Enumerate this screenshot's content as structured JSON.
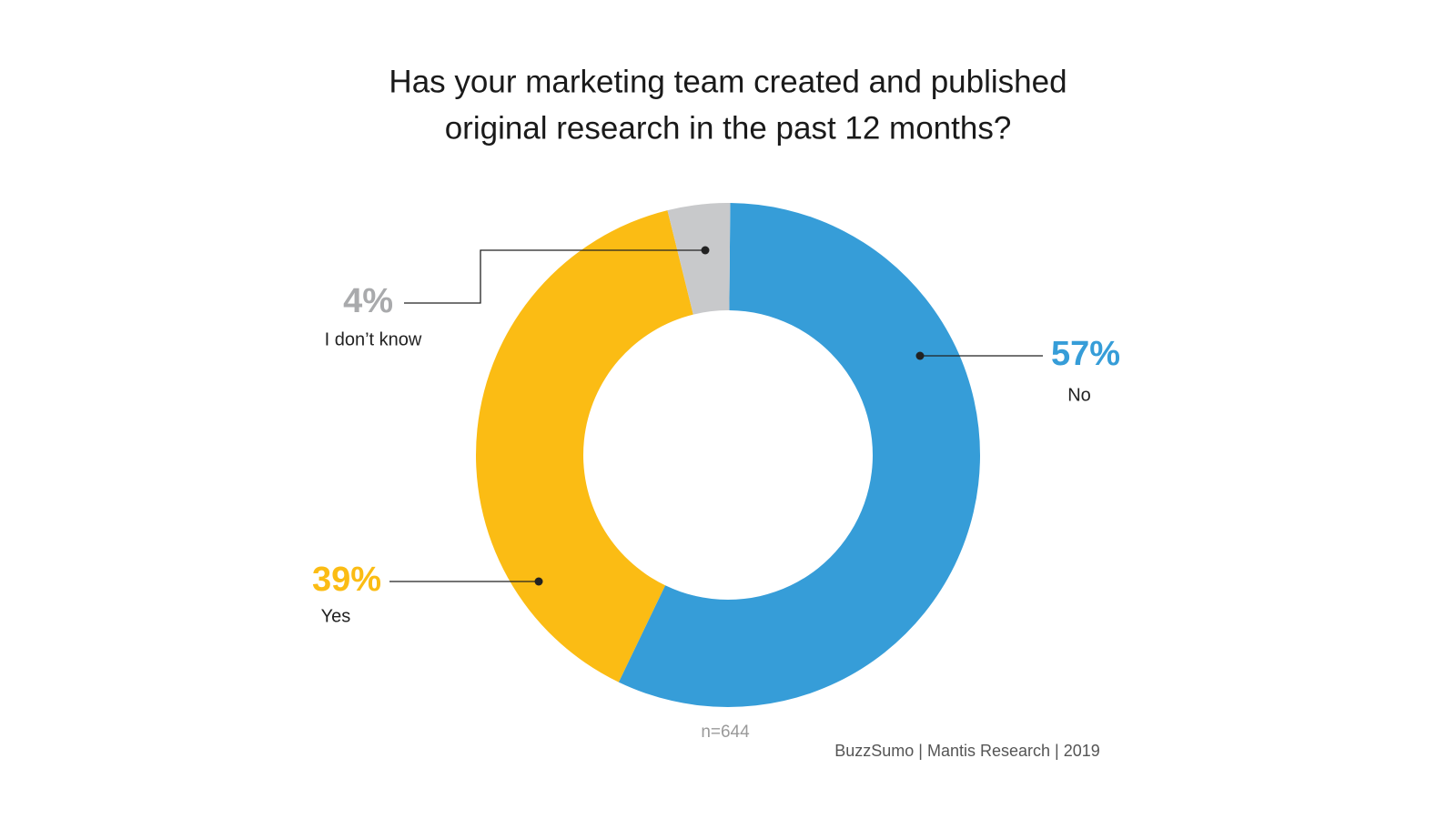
{
  "chart_data": {
    "type": "donut",
    "title": [
      "Has your marketing team created and published",
      "original research in the past 12 months?"
    ],
    "categories": [
      "No",
      "Yes",
      "I don’t know"
    ],
    "values": [
      57,
      39,
      4
    ],
    "value_labels": [
      "57%",
      "39%",
      "4%"
    ],
    "colors": [
      "#369dd8",
      "#fbbc14",
      "#c8c9cb"
    ],
    "note": "n=644",
    "source": "BuzzSumo | Mantis Research | 2019"
  }
}
